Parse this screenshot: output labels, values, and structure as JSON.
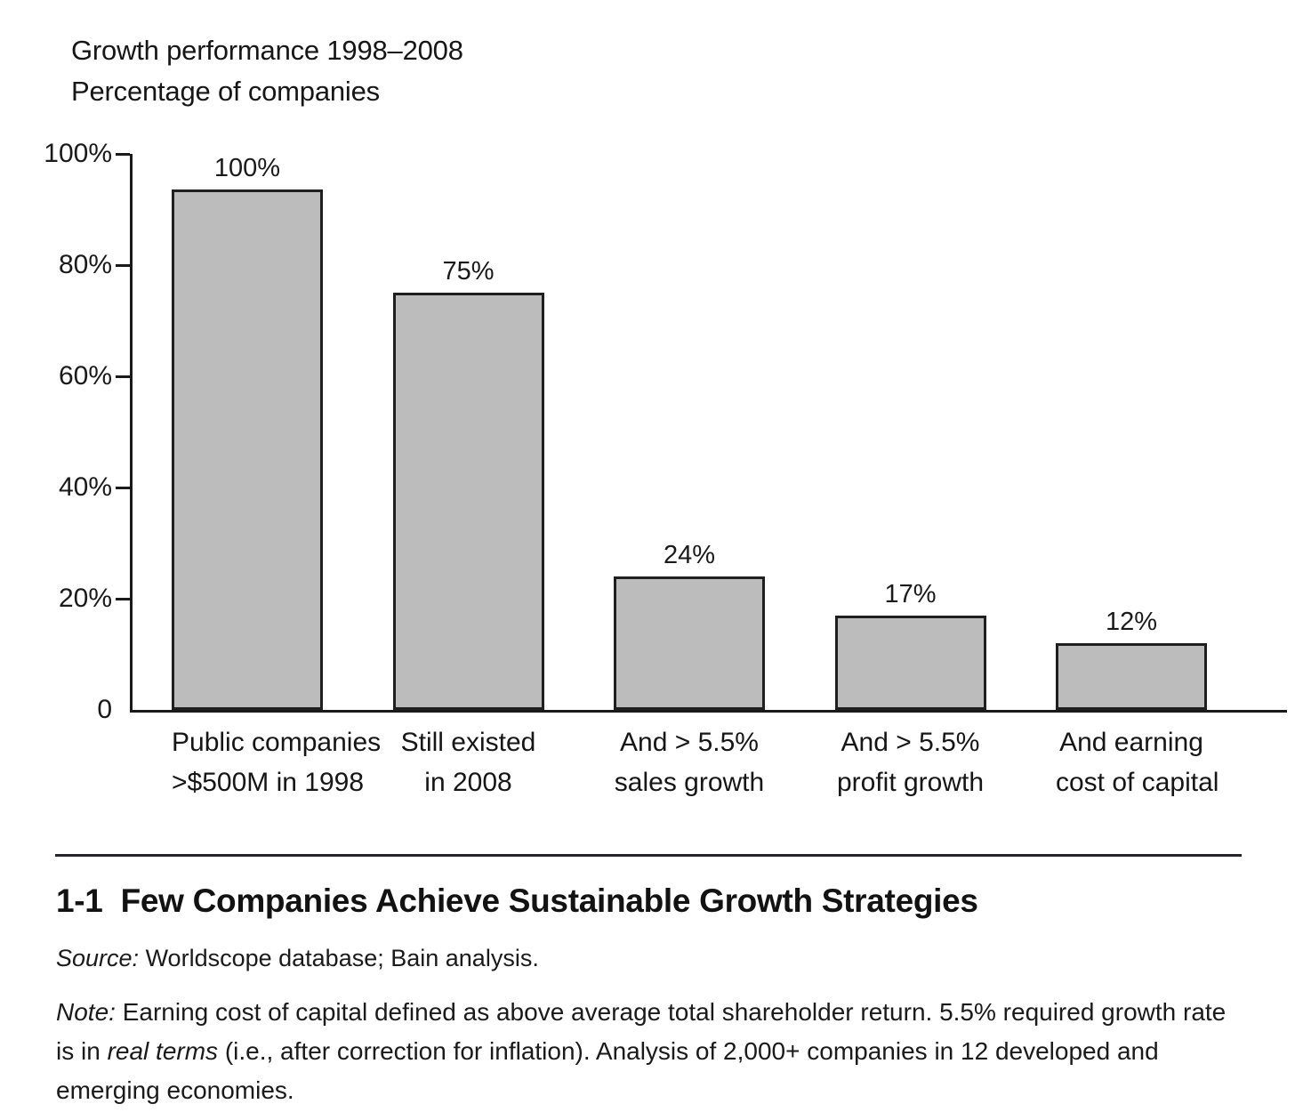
{
  "header": {
    "title_line1": "Growth performance 1998–2008",
    "title_line2": "Percentage of companies"
  },
  "chart_data": {
    "type": "bar",
    "title": "Growth performance 1998–2008",
    "subtitle": "Percentage of companies",
    "categories": [
      "Public companies >$500M in 1998",
      "Still existed in 2008",
      "And > 5.5% sales growth",
      "And > 5.5% profit growth",
      "And earning cost of capital"
    ],
    "category_lines": [
      [
        "Public companies",
        ">$500M in 1998"
      ],
      [
        "Still existed",
        "in 2008"
      ],
      [
        "And > 5.5%",
        "sales growth"
      ],
      [
        "And > 5.5%",
        "profit growth"
      ],
      [
        "And earning",
        "cost of capital"
      ]
    ],
    "values": [
      100,
      75,
      24,
      17,
      12
    ],
    "value_labels": [
      "100%",
      "75%",
      "24%",
      "17%",
      "12%"
    ],
    "xlabel": "",
    "ylabel": "Percentage of companies",
    "ylim": [
      0,
      100
    ],
    "y_ticks": [
      "100%",
      "80%",
      "60%",
      "40%",
      "20%",
      "0"
    ],
    "grid": false,
    "legend": "none",
    "bar_fill_color": "#bcbcbc",
    "bar_border_color": "#1f1f1f",
    "axis_color": "#1a1a1a"
  },
  "caption": {
    "figure_number": "1-1",
    "title": "Few Companies Achieve Sustainable Growth Strategies",
    "source_label": "Source:",
    "source_text": " Worldscope database; Bain analysis.",
    "note_label": "Note:",
    "note_part1": " Earning cost of capital defined as above average total shareholder return. 5.5% required growth rate is in ",
    "note_italic_term": "real terms",
    "note_part2": " (i.e., after correction for inflation). Analysis of 2,000+ companies in 12 developed and emerging economies."
  }
}
